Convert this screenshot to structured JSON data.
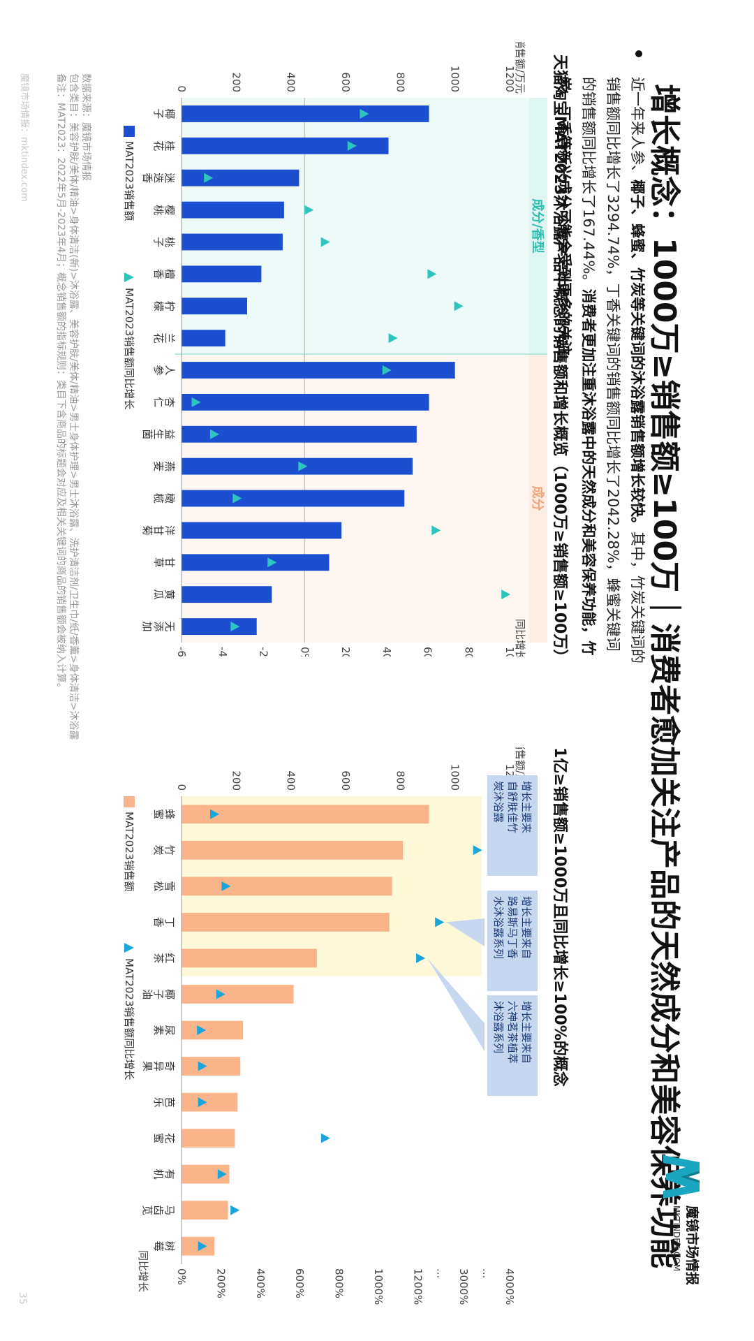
{
  "header": {
    "title": "增长概念：1000万≥销售额≥100万｜消费者愈加关注产品的天然成分和美容保养功能",
    "logo_text": "魔镜市场情报",
    "logo_url": "MKTINDEX.COM"
  },
  "summary": {
    "part1": "近一年来人参、",
    "part2": "椰子、蜂蜜、竹炭等关键词的沐浴露销售额增长较快。",
    "part3": "其中，竹炭关键词的销售额同比增长了3294.74%，丁香关键词的销售额同比增长了2042.28%，蜂蜜关键词的销售额同比增长了167.44%。",
    "part4": "消费者更加注重沐浴露中的天然成分和美容保养功能，竹炭、丁香等新兴成分可能会受到更多的关注。"
  },
  "footer": {
    "line1": "数据来源：魔镜市场情报",
    "line2": "包含类目：美容护肤/美体/精油>身体清洁(新)>沐浴露、美容护肤/美体/精油>男士身体护理>男士沐浴露、洗护清洁剂/卫生巾/纸/香薰>身体清洁>沐浴露",
    "line3": "备注：MAT2023：2022年5月-2023年4月；概念销售额的指标规则：类目下含商品的标题会对应及相关关键词的商品的销售额会被纳入计算。",
    "watermark": "魔镜市场情报：mktindex.com",
    "page": "35"
  },
  "chart_data": [
    {
      "type": "bar",
      "title": "天猫淘宝MAT2023沐浴露产品中概念的销售额和增长概览（1000万≥销售额≥100万）",
      "categories": [
        "椰子",
        "桂花",
        "迷迭香",
        "樱桃",
        "桃子",
        "檀香",
        "柠檬",
        "兰花",
        "人参",
        "杏仁",
        "益生菌",
        "燕麦",
        "橄榄",
        "洋甘菊",
        "甘草",
        "黄瓜",
        "无添加"
      ],
      "groups": [
        {
          "label": "成分/香型",
          "count": 8,
          "color": "#dff5f2",
          "text_color": "#2ebfb0"
        },
        {
          "label": "成分",
          "count": 9,
          "color": "#fdeee5",
          "text_color": "#f0a47a"
        }
      ],
      "series": [
        {
          "name": "MAT2023销售额",
          "type": "bar",
          "color": "#1c4fd0",
          "values": [
            905,
            757,
            430,
            375,
            370,
            292,
            240,
            160,
            1000,
            905,
            860,
            845,
            815,
            585,
            540,
            330,
            275
          ]
        },
        {
          "name": "MAT2023销售额同比增长",
          "type": "marker",
          "color": "#2ec5bf",
          "values": [
            0.29,
            0.23,
            -0.47,
            0.02,
            0.1,
            0.62,
            0.75,
            0.43,
            0.4,
            -0.53,
            -0.44,
            -0.01,
            -0.33,
            0.64,
            -0.16,
            0.98,
            -0.34
          ]
        }
      ],
      "ylabel": "销售额/万元",
      "y2label": "同比增长",
      "yticks": [
        0,
        200,
        400,
        600,
        800,
        1000,
        1200
      ],
      "y2ticks": [
        "-60%",
        "-40%",
        "-20%",
        "0%",
        "20%",
        "40%",
        "60%",
        "80%",
        "100%"
      ],
      "ylim": [
        0,
        1200
      ],
      "y2lim": [
        -0.6,
        1.0
      ]
    },
    {
      "type": "bar",
      "title": "1亿≥销售额≥1000万且同比增长≥100%的概念",
      "categories": [
        "蜂蜜",
        "竹炭",
        "雪松",
        "丁香",
        "红茶",
        "椰子油",
        "尿素",
        "奇异果",
        "芭乐",
        "花蜜",
        "有机",
        "马齿苋",
        "树莓"
      ],
      "series": [
        {
          "name": "MAT2023销售额",
          "type": "bar",
          "color": "#f9b589",
          "values": [
            905,
            810,
            770,
            760,
            495,
            410,
            225,
            215,
            205,
            195,
            175,
            170,
            120
          ]
        },
        {
          "name": "MAT2023销售额同比增长",
          "type": "marker",
          "color": "#1aa6dc",
          "values": [
            1.67,
            32.95,
            2.25,
            20.42,
            13.0,
            1.98,
            1.0,
            1.05,
            1.05,
            7.3,
            2.05,
            2.7,
            1.05
          ]
        }
      ],
      "ylabel": "销售额/万元",
      "y2label": "同比增长",
      "yticks": [
        0,
        200,
        400,
        600,
        800,
        1000,
        1200
      ],
      "y2ticks": [
        "0%",
        "200%",
        "400%",
        "600%",
        "800%",
        "1000%",
        "1200%",
        "...",
        "3000%",
        "...",
        "4000%"
      ],
      "ylim": [
        0,
        1200
      ],
      "highlight_range": [
        "蜂蜜",
        "红茶"
      ],
      "callouts": [
        {
          "lines": [
            "增长主要来",
            "自舒肤佳竹",
            "炭沐浴露"
          ],
          "target": "竹炭"
        },
        {
          "lines": [
            "增长主要来自",
            "路易斯马丁香",
            "水沐浴露系列"
          ],
          "target": "丁香"
        },
        {
          "lines": [
            "增长主要来自",
            "六神茗茶植萃",
            "沐浴露系列"
          ],
          "target": "红茶"
        }
      ]
    }
  ],
  "colors": {
    "accent_blue": "#1c4fd0",
    "accent_orange": "#f9b589",
    "teal": "#2ec5bf",
    "sky": "#1aa6dc"
  }
}
